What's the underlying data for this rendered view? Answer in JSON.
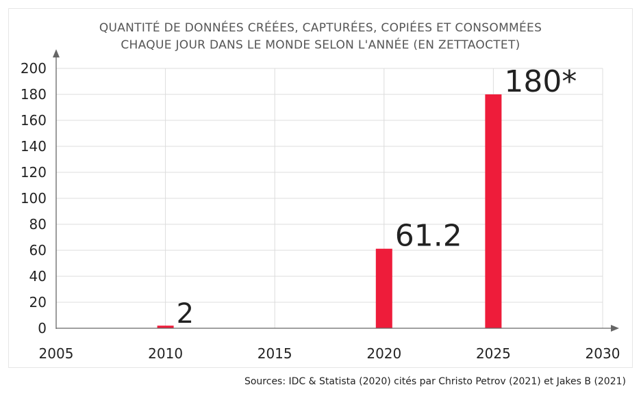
{
  "chart_data": {
    "type": "bar",
    "title_lines": [
      "QUANTITÉ DE DONNÉES CRÉÉES, CAPTURÉES, COPIÉES ET CONSOMMÉES",
      "CHAQUE JOUR DANS LE MONDE SELON L'ANNÉE (EN ZETTAOCTET)"
    ],
    "xlabel": "",
    "ylabel": "",
    "x": [
      2010,
      2020,
      2025
    ],
    "values": [
      2,
      61.2,
      180
    ],
    "data_labels": [
      "2",
      "61.2",
      "180*"
    ],
    "xlim": [
      2005,
      2030
    ],
    "ylim": [
      0,
      200
    ],
    "x_ticks": [
      2005,
      2010,
      2015,
      2020,
      2025,
      2030
    ],
    "y_ticks": [
      0,
      20,
      40,
      60,
      80,
      100,
      120,
      140,
      160,
      180,
      200
    ],
    "grid": true,
    "bar_color": "#ee1c3a"
  },
  "source_text": "Sources: IDC & Statista (2020) cités par Christo Petrov (2021) et Jakes B (2021)"
}
